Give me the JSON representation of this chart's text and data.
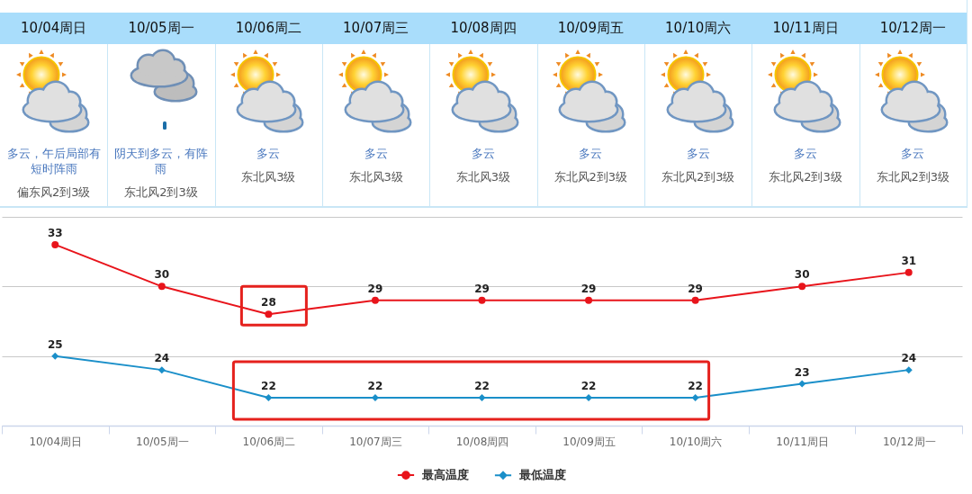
{
  "chart_data": [
    {
      "type": "other",
      "categories": [
        "10/04周日",
        "10/05周一",
        "10/06周二",
        "10/07周三",
        "10/08周四",
        "10/09周五",
        "10/10周六",
        "10/11周日",
        "10/12周一"
      ],
      "annotations": [
        "多云，午后局部有短时阵雨",
        "偏东风2到3级",
        "阴天到多云，有阵雨",
        "东北风2到3级",
        "多云",
        "东北风3级",
        "多云",
        "东北风3级",
        "多云",
        "东北风3级",
        "多云",
        "东北风2到3级",
        "多云",
        "东北风2到3级",
        "多云",
        "东北风2到3级",
        "多云",
        "东北风2到3级"
      ]
    },
    {
      "type": "line",
      "categories": [
        "10/04周日",
        "10/05周一",
        "10/06周二",
        "10/07周三",
        "10/08周四",
        "10/09周五",
        "10/10周六",
        "10/11周日",
        "10/12周一"
      ],
      "series": [
        {
          "name": "最高温度",
          "color": "#e8141b",
          "marker": "circle",
          "values": [
            33,
            30,
            28,
            29,
            29,
            29,
            29,
            30,
            31
          ]
        },
        {
          "name": "最低温度",
          "color": "#1a8fc9",
          "marker": "diamond",
          "values": [
            25,
            24,
            22,
            22,
            22,
            22,
            22,
            23,
            24
          ]
        }
      ],
      "ylim": [
        20,
        35
      ],
      "yticks": [
        {
          "value": 20,
          "label": null
        },
        {
          "value": 25,
          "label": null
        },
        {
          "value": 30,
          "label": null
        },
        {
          "value": 35,
          "label": null
        }
      ],
      "grid": "y",
      "legend": "bottom",
      "data_labels": true,
      "tick_labels": "x",
      "line_style": "solid"
    }
  ]
}
